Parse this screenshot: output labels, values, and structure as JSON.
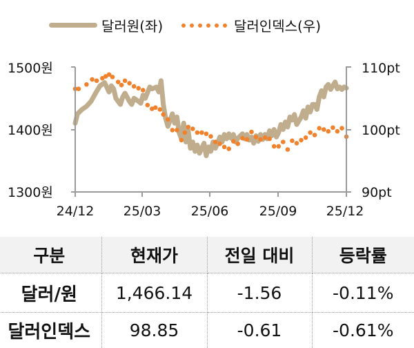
{
  "legend": {
    "series1_label": "달러원(좌)",
    "series2_label": "달러인덱스(우)"
  },
  "colors": {
    "krw_line": "#BFAD8E",
    "dxy_dots": "#F0822D",
    "axis": "#9A9A9A",
    "header_bg": "#F2F2F2"
  },
  "chart_data": {
    "type": "line",
    "title": "",
    "x_ticks": [
      "24/12",
      "25/03",
      "25/06",
      "25/09",
      "25/12"
    ],
    "left_axis": {
      "label": "",
      "ticks": [
        "1500원",
        "1400원",
        "1300원"
      ],
      "ylim": [
        1300,
        1500
      ]
    },
    "right_axis": {
      "label": "",
      "ticks": [
        "110pt",
        "100pt",
        "90pt"
      ],
      "ylim": [
        90,
        110
      ]
    },
    "legend_position": "top",
    "grid": false,
    "series": [
      {
        "name": "달러원(좌)",
        "axis": "left",
        "style": "thick-line",
        "x_months": [
          0.0,
          0.1,
          0.3,
          0.5,
          0.7,
          0.9,
          1.1,
          1.3,
          1.5,
          1.6,
          1.7,
          1.8,
          2.0,
          2.1,
          2.2,
          2.4,
          2.5,
          2.6,
          2.8,
          2.9,
          3.0,
          3.1,
          3.3,
          3.4,
          3.6,
          3.7,
          3.8,
          3.9,
          4.0,
          4.1,
          4.3,
          4.4,
          4.5,
          4.6,
          4.7,
          4.8,
          4.9,
          5.0,
          5.1,
          5.2,
          5.3,
          5.4,
          5.5,
          5.6,
          5.7,
          5.8,
          5.9,
          6.0,
          6.1,
          6.2,
          6.3,
          6.4,
          6.5,
          6.6,
          6.7,
          6.8,
          6.9,
          7.0,
          7.1,
          7.2,
          7.4,
          7.5,
          7.6,
          7.7,
          7.8,
          7.9,
          8.0,
          8.1,
          8.2,
          8.3,
          8.4,
          8.5,
          8.6,
          8.7,
          8.8,
          8.9,
          9.0,
          9.1,
          9.2,
          9.3,
          9.4,
          9.5,
          9.6,
          9.7,
          9.8,
          10.0,
          10.1,
          10.2,
          10.3,
          10.4,
          10.5,
          10.6,
          10.7,
          10.8,
          10.9,
          11.0,
          11.1,
          11.2,
          11.3,
          11.4,
          11.5,
          11.6,
          11.7,
          11.8,
          11.9,
          12.0
        ],
        "values": [
          1410,
          1425,
          1432,
          1437,
          1445,
          1458,
          1470,
          1475,
          1460,
          1470,
          1465,
          1450,
          1440,
          1452,
          1458,
          1445,
          1440,
          1450,
          1445,
          1442,
          1455,
          1450,
          1468,
          1465,
          1468,
          1460,
          1478,
          1440,
          1418,
          1405,
          1425,
          1410,
          1420,
          1395,
          1385,
          1410,
          1380,
          1398,
          1370,
          1380,
          1365,
          1375,
          1362,
          1370,
          1378,
          1358,
          1372,
          1365,
          1380,
          1370,
          1378,
          1388,
          1380,
          1392,
          1385,
          1393,
          1386,
          1392,
          1380,
          1386,
          1393,
          1385,
          1392,
          1383,
          1388,
          1378,
          1390,
          1381,
          1392,
          1384,
          1392,
          1385,
          1398,
          1390,
          1400,
          1388,
          1395,
          1408,
          1400,
          1412,
          1404,
          1420,
          1415,
          1424,
          1408,
          1420,
          1430,
          1418,
          1436,
          1428,
          1440,
          1440,
          1432,
          1452,
          1462,
          1452,
          1468,
          1472,
          1464,
          1470,
          1476,
          1465,
          1468,
          1464,
          1468,
          1466.14
        ]
      },
      {
        "name": "달러인덱스(우)",
        "axis": "right",
        "style": "dots",
        "x_months": [
          0.0,
          0.15,
          0.5,
          0.75,
          0.95,
          1.2,
          1.35,
          1.5,
          1.65,
          1.9,
          2.05,
          2.2,
          2.4,
          2.6,
          2.8,
          3.0,
          3.2,
          3.4,
          3.55,
          3.75,
          3.9,
          4.1,
          4.3,
          4.5,
          4.7,
          4.85,
          5.0,
          5.2,
          5.4,
          5.6,
          5.8,
          6.0,
          6.2,
          6.4,
          6.6,
          6.8,
          7.0,
          7.2,
          7.4,
          7.6,
          7.8,
          8.0,
          8.2,
          8.4,
          8.6,
          8.8,
          9.0,
          9.2,
          9.4,
          9.6,
          9.8,
          10.0,
          10.2,
          10.4,
          10.6,
          10.8,
          11.0,
          11.2,
          11.4,
          11.6,
          11.8,
          12.0
        ],
        "values": [
          106.5,
          106.5,
          107.2,
          108.0,
          107.8,
          108.2,
          108.5,
          108.8,
          108.4,
          107.6,
          107.1,
          107.8,
          107.4,
          106.9,
          106.6,
          106.3,
          103.9,
          103.3,
          103.5,
          103.2,
          102.4,
          101.6,
          99.9,
          99.9,
          98.3,
          99.5,
          100.4,
          100.1,
          99.5,
          99.5,
          99.3,
          98.9,
          98.0,
          97.7,
          97.2,
          96.9,
          98.1,
          97.7,
          98.6,
          98.4,
          99.6,
          98.8,
          98.4,
          98.7,
          98.5,
          97.3,
          97.3,
          98.0,
          96.8,
          98.2,
          97.8,
          98.3,
          98.7,
          99.5,
          99.1,
          100.2,
          100.0,
          99.7,
          100.3,
          99.7,
          100.2,
          98.85
        ]
      }
    ]
  },
  "table": {
    "headers": [
      "구분",
      "현재가",
      "전일 대비",
      "등락률"
    ],
    "rows": [
      {
        "name": "달러/원",
        "price": "1,466.14",
        "change": "-1.56",
        "rate": "-0.11%"
      },
      {
        "name": "달러인덱스",
        "price": "98.85",
        "change": "-0.61",
        "rate": "-0.61%"
      }
    ]
  }
}
